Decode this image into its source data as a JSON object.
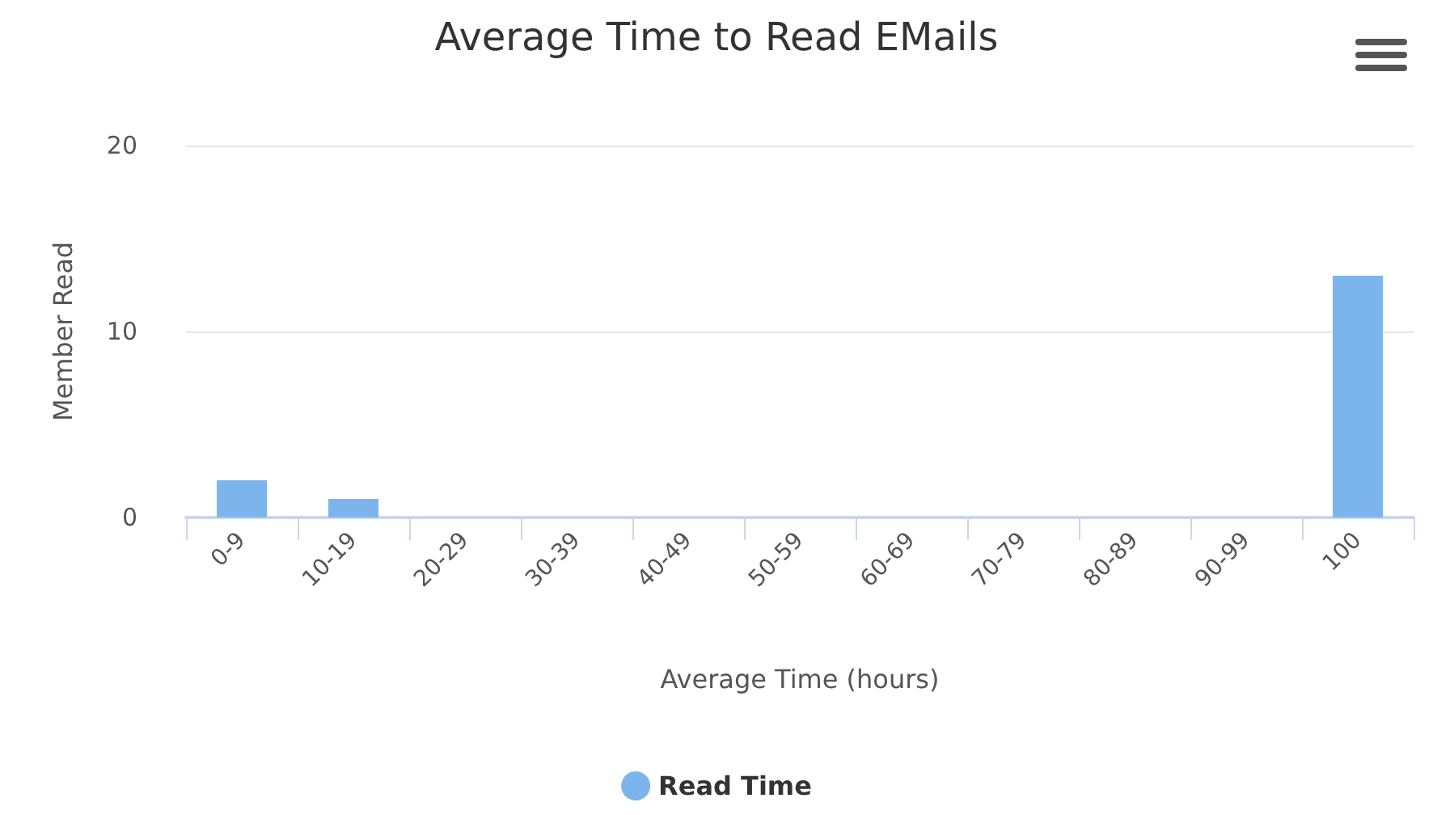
{
  "chart_data": {
    "type": "bar",
    "title": "Average Time to Read EMails",
    "xlabel": "Average Time (hours)",
    "ylabel": "Member Read",
    "categories": [
      "0-9",
      "10-19",
      "20-29",
      "30-39",
      "40-49",
      "50-59",
      "60-69",
      "70-79",
      "80-89",
      "90-99",
      "100"
    ],
    "series": [
      {
        "name": "Read Time",
        "color": "#7cb5ec",
        "values": [
          2,
          1,
          0,
          0,
          0,
          0,
          0,
          0,
          0,
          0,
          13
        ]
      }
    ],
    "ylim": [
      0,
      20
    ],
    "yticks": [
      0,
      10,
      20
    ],
    "grid": "y",
    "legend": "bottom"
  }
}
